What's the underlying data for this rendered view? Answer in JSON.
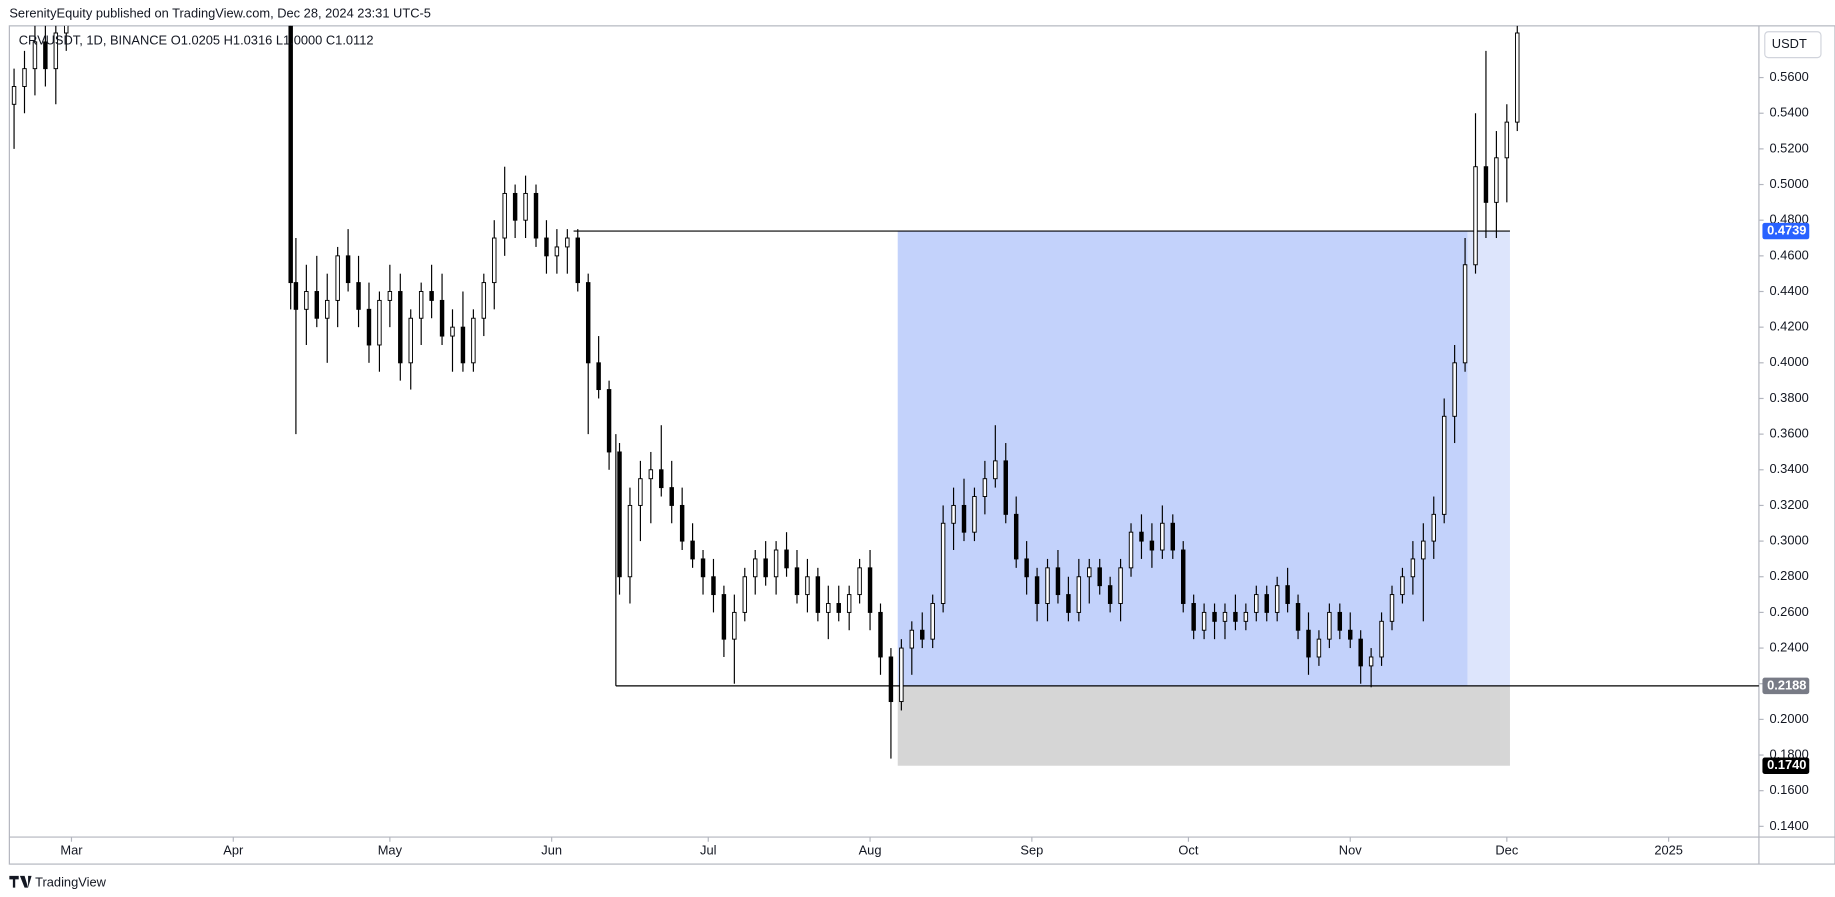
{
  "chart_data": {
    "type": "candlestick",
    "header": "SerenityEquity published on TradingView.com, Dec 28, 2024 23:31 UTC-5",
    "symbol": "CRVUSDT, 1D, BINANCE  O1.0205  H1.0316  L1.0000  C1.0112",
    "currency": "USDT",
    "brand": "TradingView",
    "x": [
      -11,
      -9,
      -7,
      -5,
      -3,
      -1,
      42,
      43,
      45,
      47,
      49,
      51,
      53,
      55,
      57,
      59,
      61,
      63,
      65,
      67,
      69,
      71,
      73,
      75,
      77,
      79,
      81,
      83,
      85,
      87,
      89,
      91,
      93,
      95,
      97,
      99,
      101,
      103,
      105,
      107,
      109,
      111,
      113,
      115,
      117,
      119,
      121,
      123,
      125,
      127,
      129,
      131,
      133,
      135,
      137,
      139,
      141,
      143,
      145,
      147,
      149,
      151,
      153,
      155,
      157,
      159,
      161,
      163,
      165,
      167,
      169,
      171,
      173,
      175,
      177,
      179,
      181,
      183,
      185,
      187,
      189,
      191,
      193,
      195,
      197,
      199,
      201,
      203,
      205,
      207,
      209,
      211,
      213,
      215,
      217,
      219,
      221,
      223,
      225,
      227,
      229,
      231,
      233,
      235,
      237,
      239,
      241,
      243,
      245,
      247,
      249,
      251,
      253,
      255,
      257,
      259,
      261,
      263,
      265,
      267,
      269,
      271,
      273,
      275,
      277
    ],
    "open": [
      0.545,
      0.555,
      0.565,
      0.58,
      0.565,
      0.585,
      0.59,
      0.445,
      0.43,
      0.44,
      0.425,
      0.435,
      0.46,
      0.445,
      0.43,
      0.41,
      0.435,
      0.44,
      0.4,
      0.425,
      0.44,
      0.435,
      0.415,
      0.42,
      0.4,
      0.425,
      0.445,
      0.47,
      0.495,
      0.48,
      0.495,
      0.47,
      0.46,
      0.465,
      0.47,
      0.445,
      0.4,
      0.385,
      0.35,
      0.28,
      0.32,
      0.335,
      0.34,
      0.33,
      0.32,
      0.3,
      0.29,
      0.28,
      0.27,
      0.245,
      0.26,
      0.28,
      0.29,
      0.28,
      0.295,
      0.285,
      0.27,
      0.28,
      0.26,
      0.265,
      0.26,
      0.27,
      0.285,
      0.26,
      0.235,
      0.21,
      0.24,
      0.25,
      0.245,
      0.265,
      0.31,
      0.32,
      0.305,
      0.325,
      0.335,
      0.345,
      0.315,
      0.29,
      0.28,
      0.265,
      0.285,
      0.27,
      0.26,
      0.28,
      0.285,
      0.275,
      0.265,
      0.285,
      0.305,
      0.3,
      0.295,
      0.31,
      0.295,
      0.265,
      0.25,
      0.26,
      0.255,
      0.26,
      0.255,
      0.26,
      0.27,
      0.26,
      0.275,
      0.265,
      0.25,
      0.235,
      0.245,
      0.26,
      0.25,
      0.245,
      0.23,
      0.235,
      0.255,
      0.27,
      0.28,
      0.29,
      0.3,
      0.315,
      0.37,
      0.4,
      0.455,
      0.51,
      0.49,
      0.515,
      0.535
    ],
    "high": [
      0.565,
      0.575,
      0.59,
      0.59,
      0.59,
      0.59,
      0.59,
      0.47,
      0.455,
      0.46,
      0.45,
      0.465,
      0.475,
      0.46,
      0.445,
      0.44,
      0.455,
      0.45,
      0.43,
      0.445,
      0.455,
      0.45,
      0.43,
      0.44,
      0.43,
      0.45,
      0.48,
      0.51,
      0.5,
      0.505,
      0.5,
      0.48,
      0.475,
      0.475,
      0.475,
      0.45,
      0.415,
      0.39,
      0.355,
      0.33,
      0.345,
      0.35,
      0.365,
      0.345,
      0.33,
      0.31,
      0.295,
      0.29,
      0.275,
      0.27,
      0.285,
      0.295,
      0.3,
      0.3,
      0.305,
      0.295,
      0.29,
      0.285,
      0.275,
      0.275,
      0.275,
      0.29,
      0.295,
      0.265,
      0.24,
      0.245,
      0.255,
      0.26,
      0.27,
      0.32,
      0.33,
      0.335,
      0.33,
      0.345,
      0.365,
      0.355,
      0.325,
      0.3,
      0.285,
      0.29,
      0.295,
      0.28,
      0.29,
      0.29,
      0.29,
      0.28,
      0.29,
      0.31,
      0.315,
      0.31,
      0.32,
      0.315,
      0.3,
      0.27,
      0.265,
      0.265,
      0.265,
      0.27,
      0.265,
      0.275,
      0.275,
      0.28,
      0.285,
      0.27,
      0.26,
      0.25,
      0.265,
      0.265,
      0.26,
      0.25,
      0.24,
      0.26,
      0.275,
      0.285,
      0.3,
      0.31,
      0.325,
      0.38,
      0.41,
      0.47,
      0.54,
      0.575,
      0.53,
      0.545,
      0.59
    ],
    "low": [
      0.52,
      0.54,
      0.55,
      0.555,
      0.545,
      0.575,
      0.43,
      0.36,
      0.41,
      0.42,
      0.4,
      0.42,
      0.44,
      0.42,
      0.4,
      0.395,
      0.42,
      0.39,
      0.385,
      0.41,
      0.425,
      0.41,
      0.395,
      0.395,
      0.395,
      0.415,
      0.43,
      0.46,
      0.47,
      0.47,
      0.465,
      0.45,
      0.45,
      0.45,
      0.44,
      0.36,
      0.38,
      0.34,
      0.27,
      0.265,
      0.3,
      0.31,
      0.325,
      0.31,
      0.295,
      0.285,
      0.27,
      0.26,
      0.235,
      0.22,
      0.255,
      0.27,
      0.275,
      0.27,
      0.28,
      0.265,
      0.26,
      0.255,
      0.245,
      0.255,
      0.25,
      0.265,
      0.25,
      0.225,
      0.178,
      0.205,
      0.225,
      0.24,
      0.24,
      0.26,
      0.295,
      0.3,
      0.3,
      0.315,
      0.33,
      0.31,
      0.285,
      0.27,
      0.255,
      0.255,
      0.265,
      0.255,
      0.255,
      0.265,
      0.27,
      0.26,
      0.255,
      0.28,
      0.29,
      0.285,
      0.29,
      0.29,
      0.26,
      0.245,
      0.245,
      0.245,
      0.245,
      0.25,
      0.25,
      0.255,
      0.255,
      0.255,
      0.26,
      0.245,
      0.225,
      0.23,
      0.24,
      0.245,
      0.24,
      0.22,
      0.218,
      0.23,
      0.25,
      0.265,
      0.27,
      0.255,
      0.29,
      0.31,
      0.355,
      0.395,
      0.45,
      0.47,
      0.47,
      0.49,
      0.53
    ],
    "close": [
      0.555,
      0.565,
      0.58,
      0.565,
      0.585,
      0.59,
      0.445,
      0.43,
      0.44,
      0.425,
      0.435,
      0.46,
      0.445,
      0.43,
      0.41,
      0.435,
      0.44,
      0.4,
      0.425,
      0.44,
      0.435,
      0.415,
      0.42,
      0.4,
      0.425,
      0.445,
      0.47,
      0.495,
      0.48,
      0.495,
      0.47,
      0.46,
      0.465,
      0.47,
      0.445,
      0.4,
      0.385,
      0.35,
      0.28,
      0.32,
      0.335,
      0.34,
      0.33,
      0.32,
      0.3,
      0.29,
      0.28,
      0.27,
      0.245,
      0.26,
      0.28,
      0.29,
      0.28,
      0.295,
      0.285,
      0.27,
      0.28,
      0.26,
      0.265,
      0.26,
      0.27,
      0.285,
      0.26,
      0.235,
      0.21,
      0.24,
      0.25,
      0.245,
      0.265,
      0.31,
      0.32,
      0.305,
      0.325,
      0.335,
      0.345,
      0.315,
      0.29,
      0.28,
      0.265,
      0.285,
      0.27,
      0.26,
      0.28,
      0.285,
      0.275,
      0.265,
      0.285,
      0.305,
      0.3,
      0.295,
      0.31,
      0.295,
      0.265,
      0.25,
      0.26,
      0.255,
      0.26,
      0.255,
      0.26,
      0.27,
      0.26,
      0.275,
      0.265,
      0.25,
      0.235,
      0.245,
      0.26,
      0.25,
      0.245,
      0.23,
      0.235,
      0.255,
      0.27,
      0.28,
      0.29,
      0.3,
      0.315,
      0.37,
      0.4,
      0.455,
      0.51,
      0.49,
      0.515,
      0.535,
      0.585
    ],
    "up_color": "#ffffff",
    "down_color": "#000000",
    "outline_color": "#000000",
    "xlim": [
      -11.9,
      323.3
    ],
    "ylim": [
      0.134,
      0.589
    ],
    "xticks": [
      {
        "value": 0,
        "label": "Mar"
      },
      {
        "value": 31,
        "label": "Apr"
      },
      {
        "value": 61,
        "label": "May"
      },
      {
        "value": 92,
        "label": "Jun"
      },
      {
        "value": 122,
        "label": "Jul"
      },
      {
        "value": 153,
        "label": "Aug"
      },
      {
        "value": 184,
        "label": "Sep"
      },
      {
        "value": 214,
        "label": "Oct"
      },
      {
        "value": 245,
        "label": "Nov"
      },
      {
        "value": 275,
        "label": "Dec"
      },
      {
        "value": 306,
        "label": "2025"
      }
    ],
    "yticks": [
      {
        "value": 0.14,
        "label": "0.1400"
      },
      {
        "value": 0.16,
        "label": "0.1600"
      },
      {
        "value": 0.18,
        "label": "0.1800"
      },
      {
        "value": 0.2,
        "label": "0.2000"
      },
      {
        "value": 0.22,
        "label": "0.2200"
      },
      {
        "value": 0.24,
        "label": "0.2400"
      },
      {
        "value": 0.26,
        "label": "0.2600"
      },
      {
        "value": 0.28,
        "label": "0.2800"
      },
      {
        "value": 0.3,
        "label": "0.3000"
      },
      {
        "value": 0.32,
        "label": "0.3200"
      },
      {
        "value": 0.34,
        "label": "0.3400"
      },
      {
        "value": 0.36,
        "label": "0.3600"
      },
      {
        "value": 0.38,
        "label": "0.3800"
      },
      {
        "value": 0.4,
        "label": "0.4000"
      },
      {
        "value": 0.42,
        "label": "0.4200"
      },
      {
        "value": 0.44,
        "label": "0.4400"
      },
      {
        "value": 0.46,
        "label": "0.4600"
      },
      {
        "value": 0.48,
        "label": "0.4800"
      },
      {
        "value": 0.5,
        "label": "0.5000"
      },
      {
        "value": 0.52,
        "label": "0.5200"
      },
      {
        "value": 0.54,
        "label": "0.5400"
      },
      {
        "value": 0.56,
        "label": "0.5600"
      }
    ],
    "zones": [
      {
        "x": [
          158.3,
          267.5
        ],
        "y": [
          0.2188,
          0.4739
        ],
        "color": "#c3d2fb"
      },
      {
        "x": [
          267.5,
          275.6
        ],
        "y": [
          0.2188,
          0.4739
        ],
        "color": "#dde5fc"
      },
      {
        "x": [
          158.3,
          275.6
        ],
        "y": [
          0.174,
          0.2188
        ],
        "color": "#d6d6d6"
      }
    ],
    "lines": [
      {
        "x": [
          96.2,
          275.6
        ],
        "y": [
          0.4739,
          0.4739
        ]
      },
      {
        "x": [
          104.3,
          323.3
        ],
        "y": [
          0.2188,
          0.2188
        ]
      },
      {
        "x": [
          104.3,
          104.3
        ],
        "y": [
          0.2188,
          0.36
        ]
      }
    ],
    "price_tags": [
      {
        "value": 0.4739,
        "label": "0.4739",
        "color": "#2962ff"
      },
      {
        "value": 0.2188,
        "label": "0.2188",
        "color": "#787b86"
      },
      {
        "value": 0.174,
        "label": "0.1740",
        "color": "#000000"
      }
    ]
  }
}
